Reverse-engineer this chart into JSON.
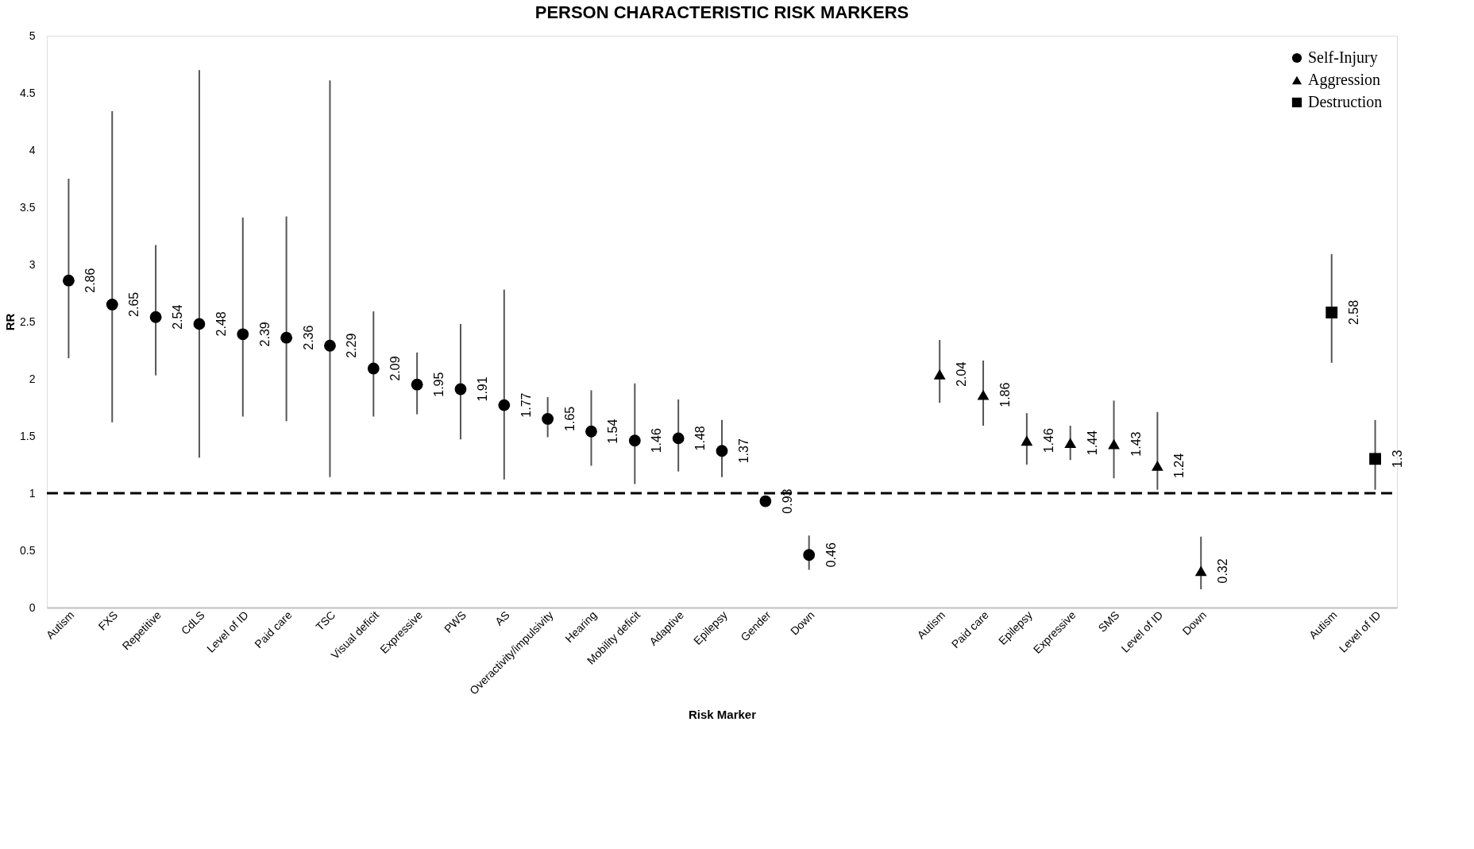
{
  "chart_data": {
    "type": "scatter",
    "title": "PERSON CHARACTERISTIC RISK MARKERS",
    "xlabel": "Risk Marker",
    "ylabel": "RR",
    "categories": [
      "Autism",
      "FXS",
      "Repetitive",
      "CdLS",
      "Level of ID",
      "Paid care",
      "TSC",
      "Visual deficit",
      "Expressive",
      "PWS",
      "AS",
      "Overactivity/impulsivity",
      "Hearing",
      "Mobility deficit",
      "Adaptive",
      "Epilepsy",
      "Gender",
      "Down",
      null,
      null,
      "Autism",
      "Paid care",
      "Epilepsy",
      "Expressive",
      "SMS",
      "Level of ID",
      "Down",
      null,
      null,
      "Autism",
      "Level of ID"
    ],
    "series": [
      {
        "name": "Self-Injury",
        "color": "#000000",
        "marker": "circle",
        "values": [
          2.86,
          2.65,
          2.54,
          2.48,
          2.39,
          2.36,
          2.29,
          2.09,
          1.95,
          1.91,
          1.77,
          1.65,
          1.54,
          1.46,
          1.48,
          1.37,
          0.93,
          0.46,
          null,
          null,
          null,
          null,
          null,
          null,
          null,
          null,
          null,
          null,
          null,
          null,
          null
        ],
        "errors": [
          [
            2.18,
            3.75
          ],
          [
            1.62,
            4.34
          ],
          [
            2.03,
            3.17
          ],
          [
            1.31,
            4.7
          ],
          [
            1.67,
            3.41
          ],
          [
            1.63,
            3.42
          ],
          [
            1.14,
            4.61
          ],
          [
            1.67,
            2.59
          ],
          [
            1.69,
            2.23
          ],
          [
            1.47,
            2.48
          ],
          [
            1.12,
            2.78
          ],
          [
            1.49,
            1.84
          ],
          [
            1.24,
            1.9
          ],
          [
            1.08,
            1.96
          ],
          [
            1.19,
            1.82
          ],
          [
            1.14,
            1.64
          ],
          null,
          [
            0.33,
            0.63
          ],
          null,
          null,
          null,
          null,
          null,
          null,
          null,
          null,
          null,
          null,
          null,
          null,
          null
        ]
      },
      {
        "name": "Aggression",
        "color": "#000000",
        "marker": "triangle",
        "values": [
          null,
          null,
          null,
          null,
          null,
          null,
          null,
          null,
          null,
          null,
          null,
          null,
          null,
          null,
          null,
          null,
          null,
          null,
          null,
          null,
          2.04,
          1.86,
          1.46,
          1.44,
          1.43,
          1.24,
          0.32,
          null,
          null,
          null,
          null
        ],
        "errors": [
          null,
          null,
          null,
          null,
          null,
          null,
          null,
          null,
          null,
          null,
          null,
          null,
          null,
          null,
          null,
          null,
          null,
          null,
          null,
          null,
          [
            1.79,
            2.34
          ],
          [
            1.59,
            2.16
          ],
          [
            1.25,
            1.7
          ],
          [
            1.29,
            1.59
          ],
          [
            1.13,
            1.81
          ],
          [
            1.03,
            1.71
          ],
          [
            0.16,
            0.62
          ],
          null,
          null,
          null,
          null
        ]
      },
      {
        "name": "Destruction",
        "color": "#000000",
        "marker": "square",
        "values": [
          null,
          null,
          null,
          null,
          null,
          null,
          null,
          null,
          null,
          null,
          null,
          null,
          null,
          null,
          null,
          null,
          null,
          null,
          null,
          null,
          null,
          null,
          null,
          null,
          null,
          null,
          null,
          null,
          null,
          2.58,
          1.3
        ],
        "errors": [
          null,
          null,
          null,
          null,
          null,
          null,
          null,
          null,
          null,
          null,
          null,
          null,
          null,
          null,
          null,
          null,
          null,
          null,
          null,
          null,
          null,
          null,
          null,
          null,
          null,
          null,
          null,
          null,
          null,
          [
            2.14,
            3.09
          ],
          [
            1.03,
            1.64
          ]
        ]
      }
    ],
    "ylim": [
      0,
      5
    ],
    "yticks": [
      0,
      0.5,
      1,
      1.5,
      2,
      2.5,
      3,
      3.5,
      4,
      4.5,
      5
    ],
    "ref_lines": [
      {
        "axis": "y",
        "value": 1,
        "color": "#000000",
        "line_style": "dashed"
      }
    ],
    "data_labels": true,
    "grid": false,
    "legend": "top right"
  }
}
